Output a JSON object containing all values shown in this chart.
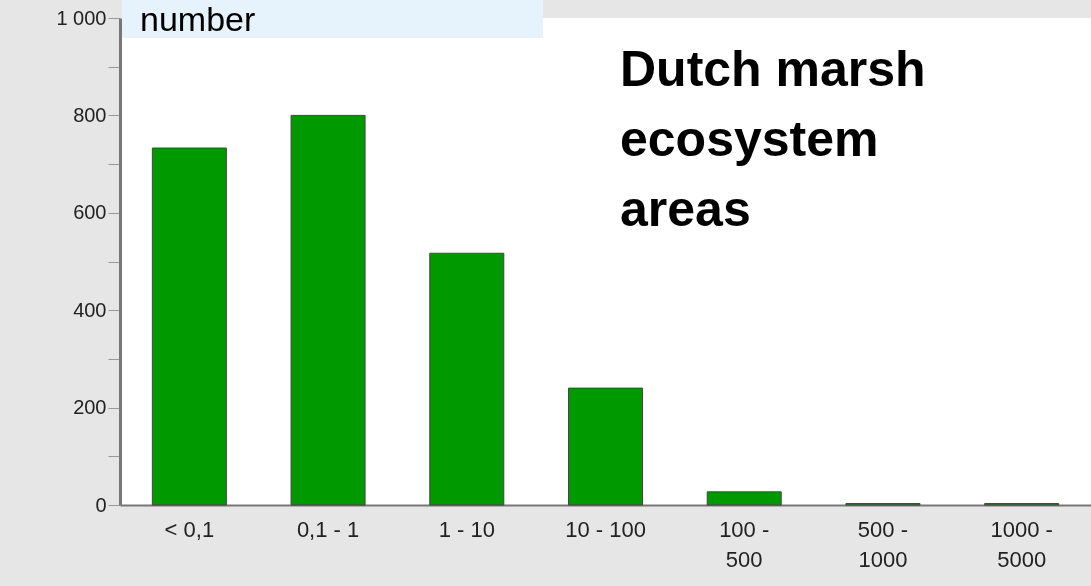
{
  "chart_data": {
    "type": "bar",
    "title": "Dutch marsh ecosystem areas",
    "ylabel": "number",
    "categories": [
      "< 0,1",
      "0,1 - 1",
      "1 - 10",
      "10 - 100",
      "100 - 500",
      "500 - 1000",
      "1000 - 5000"
    ],
    "values": [
      733,
      800,
      517,
      240,
      27,
      3,
      3
    ],
    "color": "#009900",
    "ylim": [
      0,
      1000
    ],
    "yticks": [
      0,
      {
        "value": 100,
        "label": null
      },
      200,
      {
        "value": 300,
        "label": null
      },
      400,
      {
        "value": 500,
        "label": null
      },
      600,
      {
        "value": 700,
        "label": null
      },
      800,
      {
        "value": 900,
        "label": null
      },
      {
        "value": 1000,
        "label": "1 000"
      }
    ],
    "grid": false
  }
}
